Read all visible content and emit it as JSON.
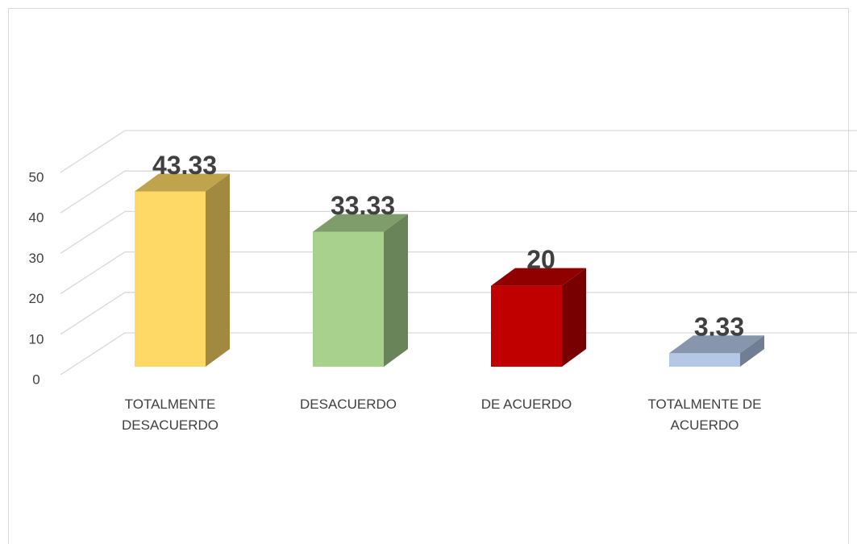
{
  "chart_data": {
    "type": "bar3d",
    "categories": [
      "TOTALMENTE DESACUERDO",
      "DESACUERDO",
      "DE ACUERDO",
      "TOTALMENTE DE ACUERDO"
    ],
    "values": [
      43.33,
      33.33,
      20,
      3.33
    ],
    "colors": [
      "#ffd966",
      "#a9d18e",
      "#c00000",
      "#b4c7e7"
    ],
    "ylim": [
      0,
      50
    ],
    "yticks": [
      0,
      10,
      20,
      30,
      40,
      50
    ],
    "grid": true
  }
}
